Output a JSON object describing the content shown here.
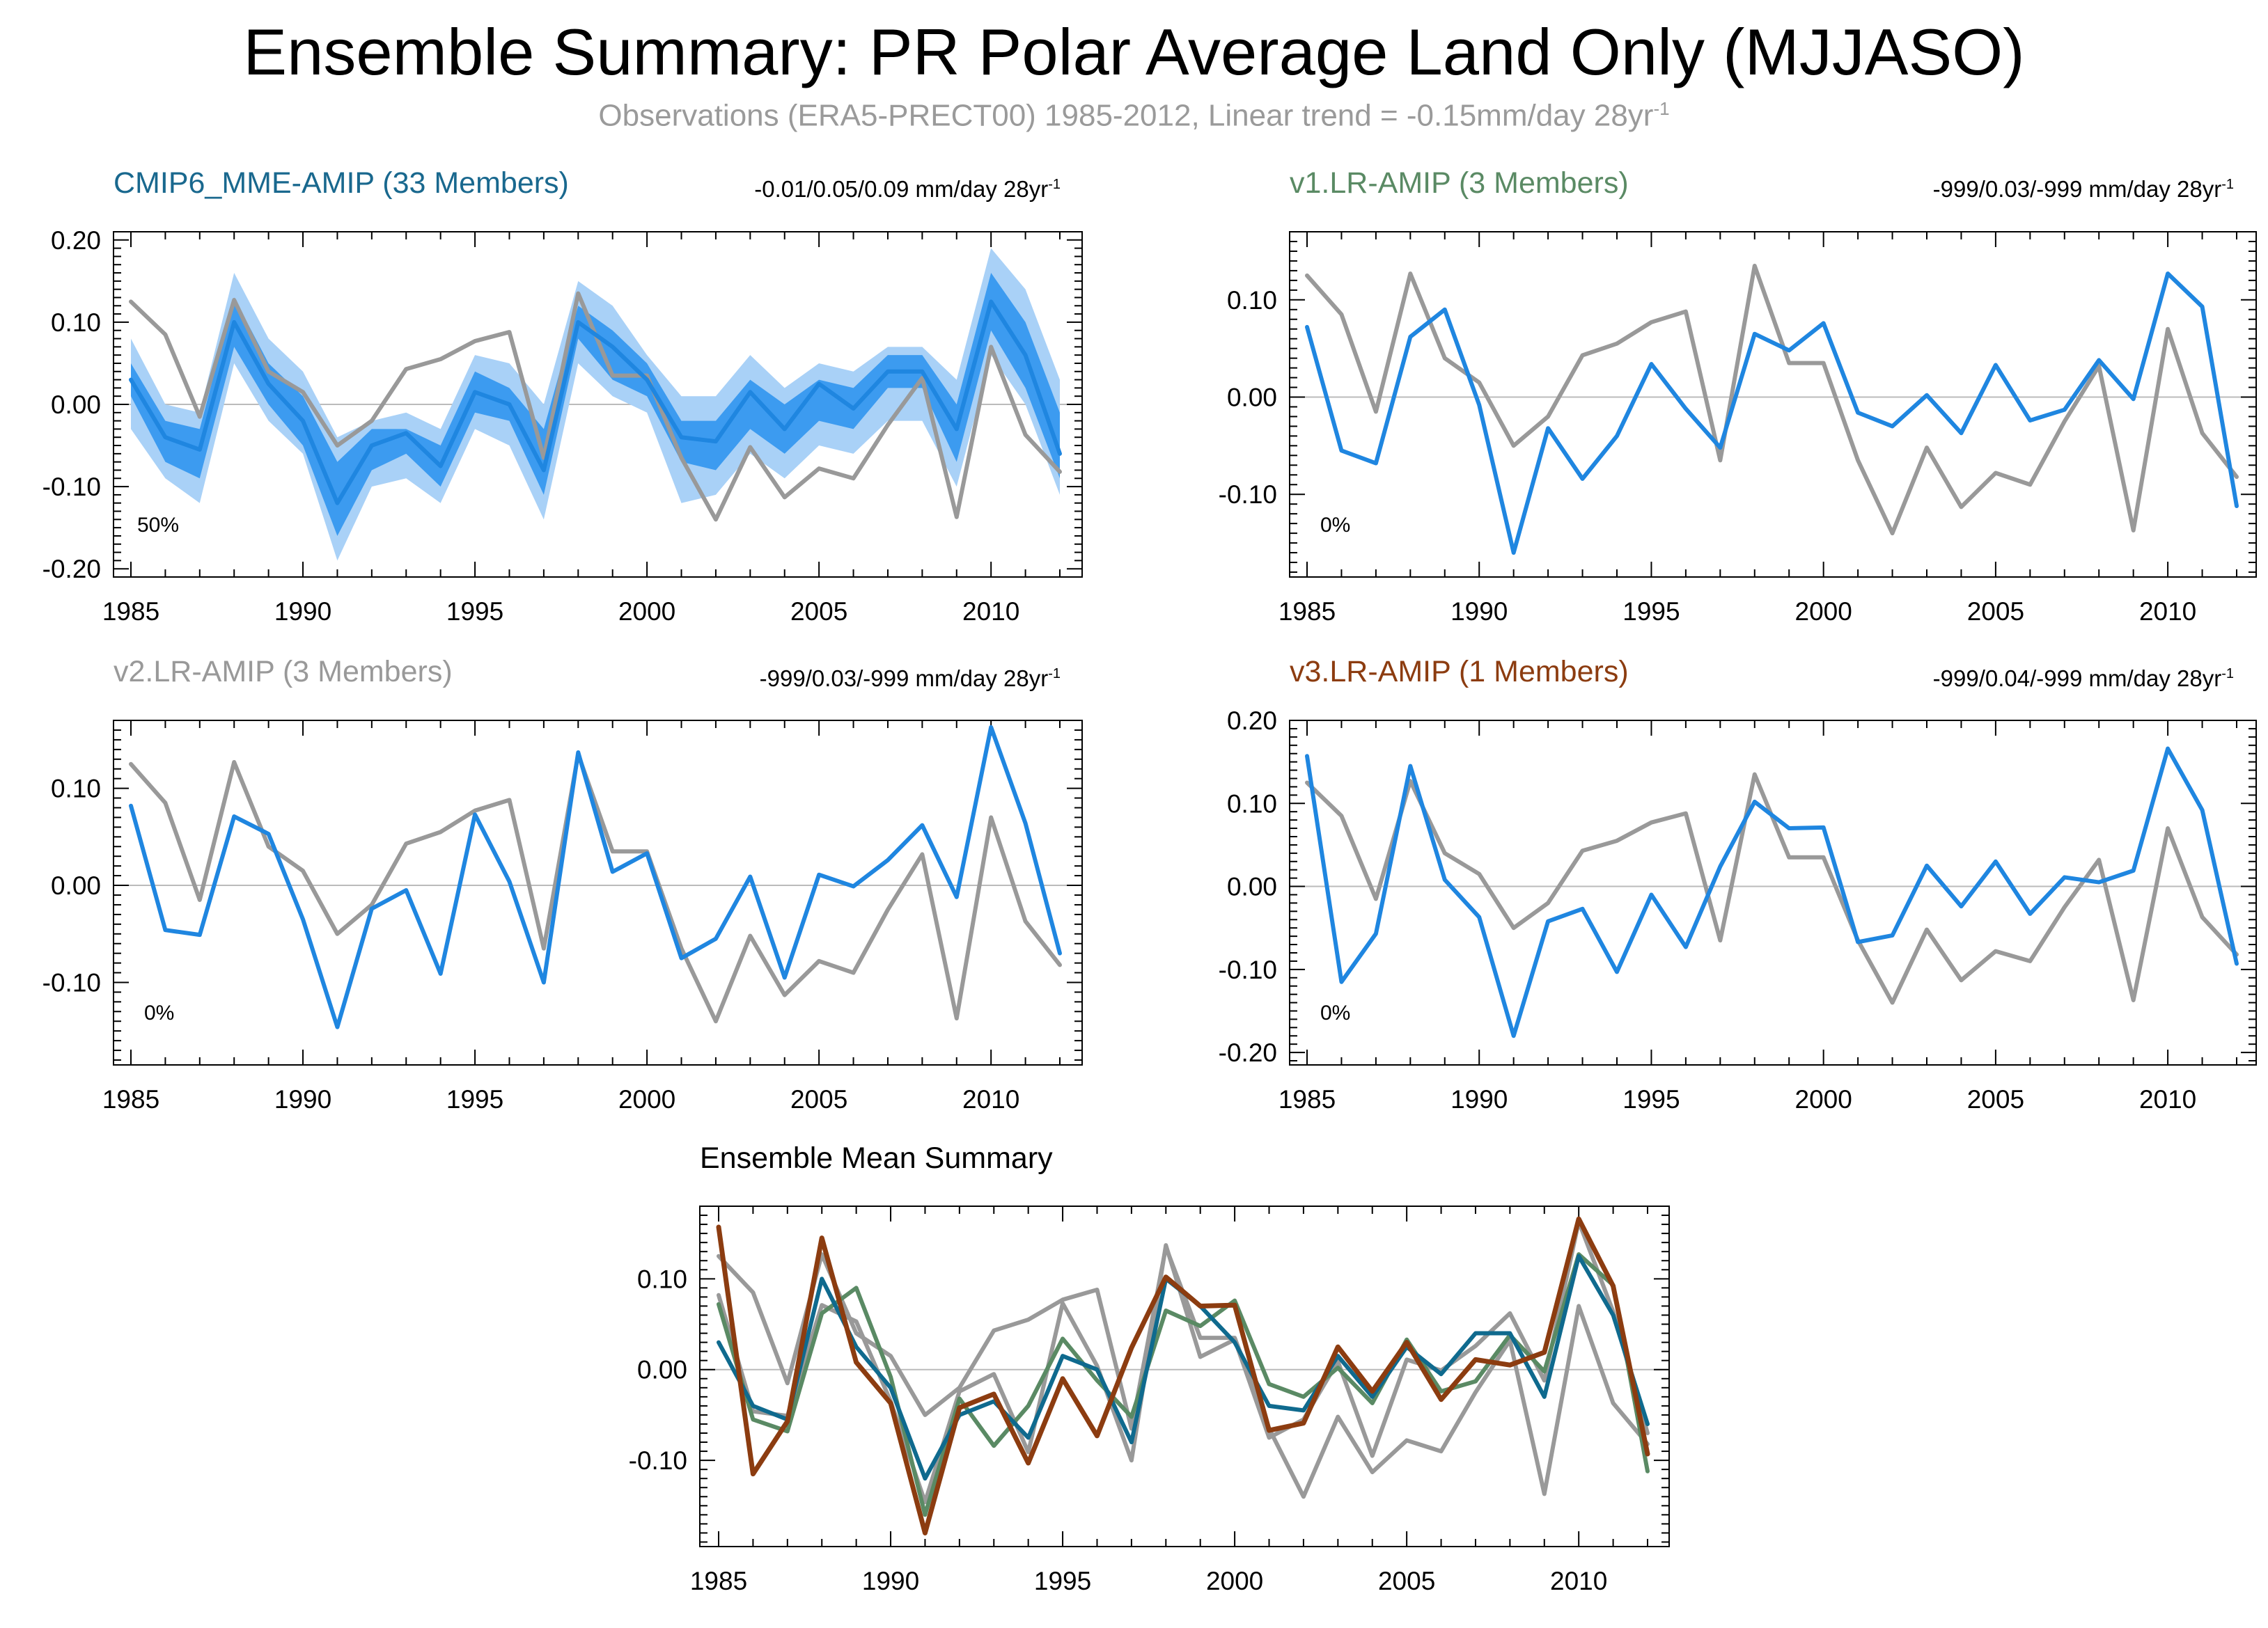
{
  "title": "Ensemble Summary: PR Polar Average Land Only (MJJASO)",
  "subtitle": {
    "text": "Observations (ERA5-PRECT00) 1985-2012, Linear trend = -0.15mm/day 28yr",
    "superscript": "-1"
  },
  "colors": {
    "observation": "#999999",
    "model_line": "#1f86e0",
    "band_outer": "#a9d1f7",
    "band_inner": "#3c9bf0",
    "cmip6_title": "#19688e",
    "v1_title": "#5a8a64",
    "v2_title": "#999999",
    "v3_title": "#8c3c10",
    "ens_cmip6": "#0f6a8e",
    "ens_v1": "#5a8a64",
    "ens_v2": "#999999",
    "ens_v3": "#8c3c10"
  },
  "chart_data": [
    {
      "id": "cmip6",
      "type": "line",
      "title": "CMIP6_MME-AMIP (33 Members)",
      "stats": "-0.01/0.05/0.09 mm/day 28yr",
      "stats_sup": "-1",
      "percent_label": "50%",
      "x": [
        1985,
        1986,
        1987,
        1988,
        1989,
        1990,
        1991,
        1992,
        1993,
        1994,
        1995,
        1996,
        1997,
        1998,
        1999,
        2000,
        2001,
        2002,
        2003,
        2004,
        2005,
        2006,
        2007,
        2008,
        2009,
        2010,
        2011,
        2012
      ],
      "xlim": [
        1985,
        2012
      ],
      "xticks": [
        "1985",
        "1990",
        "1995",
        "2000",
        "2005",
        "2010"
      ],
      "ylim": [
        -0.21,
        0.21
      ],
      "yticks": [
        "0.20",
        "0.10",
        "0.00",
        "-0.10",
        "-0.20"
      ],
      "ytick_values": [
        0.2,
        0.1,
        0.0,
        -0.1,
        -0.2
      ],
      "bands": [
        {
          "name": "outer",
          "upper": [
            0.08,
            0.0,
            -0.01,
            0.16,
            0.08,
            0.04,
            -0.04,
            -0.02,
            -0.01,
            -0.03,
            0.06,
            0.05,
            0.0,
            0.15,
            0.12,
            0.06,
            0.01,
            0.01,
            0.06,
            0.02,
            0.05,
            0.04,
            0.07,
            0.07,
            0.03,
            0.19,
            0.14,
            0.03
          ],
          "lower": [
            -0.03,
            -0.09,
            -0.12,
            0.05,
            -0.02,
            -0.06,
            -0.19,
            -0.1,
            -0.09,
            -0.12,
            -0.03,
            -0.05,
            -0.14,
            0.05,
            0.01,
            -0.01,
            -0.12,
            -0.11,
            -0.06,
            -0.09,
            -0.05,
            -0.06,
            -0.02,
            -0.02,
            -0.1,
            0.06,
            0.0,
            -0.11
          ]
        },
        {
          "name": "inner",
          "upper": [
            0.05,
            -0.02,
            -0.03,
            0.13,
            0.05,
            0.01,
            -0.07,
            -0.03,
            -0.03,
            -0.05,
            0.04,
            0.02,
            -0.03,
            0.12,
            0.09,
            0.05,
            -0.02,
            -0.02,
            0.03,
            0.0,
            0.03,
            0.02,
            0.06,
            0.06,
            0.0,
            0.16,
            0.1,
            -0.01
          ],
          "lower": [
            0.01,
            -0.07,
            -0.09,
            0.07,
            0.0,
            -0.05,
            -0.16,
            -0.08,
            -0.06,
            -0.1,
            -0.01,
            -0.02,
            -0.11,
            0.08,
            0.03,
            0.01,
            -0.07,
            -0.08,
            -0.03,
            -0.06,
            -0.02,
            -0.03,
            0.02,
            0.02,
            -0.07,
            0.09,
            0.02,
            -0.09
          ]
        }
      ],
      "series": [
        {
          "name": "Observations (ERA5-PRECT00)",
          "role": "obs",
          "values": [
            0.125,
            0.085,
            -0.015,
            0.127,
            0.04,
            0.015,
            -0.05,
            -0.02,
            0.043,
            0.055,
            0.077,
            0.088,
            -0.065,
            0.135,
            0.035,
            0.035,
            -0.065,
            -0.14,
            -0.052,
            -0.113,
            -0.078,
            -0.09,
            -0.025,
            0.032,
            -0.137,
            0.07,
            -0.037,
            -0.082
          ]
        },
        {
          "name": "CMIP6_MME-AMIP ensemble mean",
          "role": "model",
          "values": [
            0.03,
            -0.04,
            -0.055,
            0.1,
            0.025,
            -0.02,
            -0.12,
            -0.05,
            -0.035,
            -0.075,
            0.015,
            0.0,
            -0.08,
            0.1,
            0.07,
            0.03,
            -0.04,
            -0.045,
            0.015,
            -0.03,
            0.025,
            -0.005,
            0.04,
            0.04,
            -0.03,
            0.125,
            0.06,
            -0.06
          ]
        }
      ]
    },
    {
      "id": "v1",
      "type": "line",
      "title": "v1.LR-AMIP (3 Members)",
      "stats": "-999/0.03/-999 mm/day 28yr",
      "stats_sup": "-1",
      "percent_label": "0%",
      "x": [
        1985,
        1986,
        1987,
        1988,
        1989,
        1990,
        1991,
        1992,
        1993,
        1994,
        1995,
        1996,
        1997,
        1998,
        1999,
        2000,
        2001,
        2002,
        2003,
        2004,
        2005,
        2006,
        2007,
        2008,
        2009,
        2010,
        2011,
        2012
      ],
      "xlim": [
        1985,
        2012
      ],
      "xticks": [
        "1985",
        "1990",
        "1995",
        "2000",
        "2005",
        "2010"
      ],
      "ylim": [
        -0.185,
        0.17
      ],
      "yticks": [
        "0.10",
        "0.00",
        "-0.10"
      ],
      "ytick_values": [
        0.1,
        0.0,
        -0.1
      ],
      "series": [
        {
          "name": "Observations (ERA5-PRECT00)",
          "role": "obs",
          "values": [
            0.125,
            0.085,
            -0.015,
            0.127,
            0.04,
            0.015,
            -0.05,
            -0.02,
            0.043,
            0.055,
            0.077,
            0.088,
            -0.065,
            0.135,
            0.035,
            0.035,
            -0.065,
            -0.14,
            -0.052,
            -0.113,
            -0.078,
            -0.09,
            -0.025,
            0.032,
            -0.137,
            0.07,
            -0.037,
            -0.082
          ]
        },
        {
          "name": "v1.LR-AMIP",
          "role": "model",
          "values": [
            0.072,
            -0.055,
            -0.068,
            0.062,
            0.09,
            -0.008,
            -0.16,
            -0.032,
            -0.084,
            -0.04,
            0.034,
            -0.012,
            -0.052,
            0.065,
            0.048,
            0.076,
            -0.016,
            -0.03,
            0.002,
            -0.037,
            0.033,
            -0.024,
            -0.013,
            0.038,
            -0.002,
            0.127,
            0.093,
            -0.112
          ]
        }
      ]
    },
    {
      "id": "v2",
      "type": "line",
      "title": "v2.LR-AMIP (3 Members)",
      "stats": "-999/0.03/-999 mm/day 28yr",
      "stats_sup": "-1",
      "percent_label": "0%",
      "x": [
        1985,
        1986,
        1987,
        1988,
        1989,
        1990,
        1991,
        1992,
        1993,
        1994,
        1995,
        1996,
        1997,
        1998,
        1999,
        2000,
        2001,
        2002,
        2003,
        2004,
        2005,
        2006,
        2007,
        2008,
        2009,
        2010,
        2011,
        2012
      ],
      "xlim": [
        1985,
        2012
      ],
      "xticks": [
        "1985",
        "1990",
        "1995",
        "2000",
        "2005",
        "2010"
      ],
      "ylim": [
        -0.185,
        0.17
      ],
      "yticks": [
        "0.10",
        "0.00",
        "-0.10"
      ],
      "ytick_values": [
        0.1,
        0.0,
        -0.1
      ],
      "series": [
        {
          "name": "Observations (ERA5-PRECT00)",
          "role": "obs",
          "values": [
            0.125,
            0.085,
            -0.015,
            0.127,
            0.04,
            0.015,
            -0.05,
            -0.02,
            0.043,
            0.055,
            0.077,
            0.088,
            -0.065,
            0.135,
            0.035,
            0.035,
            -0.065,
            -0.14,
            -0.052,
            -0.113,
            -0.078,
            -0.09,
            -0.025,
            0.032,
            -0.137,
            0.07,
            -0.037,
            -0.082
          ]
        },
        {
          "name": "v2.LR-AMIP",
          "role": "model",
          "values": [
            0.082,
            -0.046,
            -0.051,
            0.071,
            0.053,
            -0.035,
            -0.146,
            -0.024,
            -0.005,
            -0.091,
            0.073,
            0.004,
            -0.1,
            0.137,
            0.014,
            0.033,
            -0.075,
            -0.055,
            0.009,
            -0.095,
            0.011,
            -0.001,
            0.026,
            0.062,
            -0.012,
            0.163,
            0.064,
            -0.07
          ]
        }
      ]
    },
    {
      "id": "v3",
      "type": "line",
      "title": "v3.LR-AMIP (1 Members)",
      "stats": "-999/0.04/-999 mm/day 28yr",
      "stats_sup": "-1",
      "percent_label": "0%",
      "x": [
        1985,
        1986,
        1987,
        1988,
        1989,
        1990,
        1991,
        1992,
        1993,
        1994,
        1995,
        1996,
        1997,
        1998,
        1999,
        2000,
        2001,
        2002,
        2003,
        2004,
        2005,
        2006,
        2007,
        2008,
        2009,
        2010,
        2011,
        2012
      ],
      "xlim": [
        1985,
        2012
      ],
      "xticks": [
        "1985",
        "1990",
        "1995",
        "2000",
        "2005",
        "2010"
      ],
      "ylim": [
        -0.215,
        0.2
      ],
      "yticks": [
        "0.20",
        "0.10",
        "0.00",
        "-0.10",
        "-0.20"
      ],
      "ytick_values": [
        0.2,
        0.1,
        0.0,
        -0.1,
        -0.2
      ],
      "series": [
        {
          "name": "Observations (ERA5-PRECT00)",
          "role": "obs",
          "values": [
            0.125,
            0.085,
            -0.015,
            0.127,
            0.04,
            0.015,
            -0.05,
            -0.02,
            0.043,
            0.055,
            0.077,
            0.088,
            -0.065,
            0.135,
            0.035,
            0.035,
            -0.065,
            -0.14,
            -0.052,
            -0.113,
            -0.078,
            -0.09,
            -0.025,
            0.032,
            -0.137,
            0.07,
            -0.037,
            -0.082
          ]
        },
        {
          "name": "v3.LR-AMIP",
          "role": "model",
          "values": [
            0.157,
            -0.115,
            -0.057,
            0.145,
            0.008,
            -0.037,
            -0.18,
            -0.042,
            -0.027,
            -0.103,
            -0.01,
            -0.073,
            0.024,
            0.102,
            0.07,
            0.071,
            -0.067,
            -0.059,
            0.025,
            -0.024,
            0.03,
            -0.033,
            0.011,
            0.005,
            0.019,
            0.166,
            0.092,
            -0.093
          ]
        }
      ]
    },
    {
      "id": "ensemble",
      "type": "line",
      "title": "Ensemble Mean Summary",
      "x": [
        1985,
        1986,
        1987,
        1988,
        1989,
        1990,
        1991,
        1992,
        1993,
        1994,
        1995,
        1996,
        1997,
        1998,
        1999,
        2000,
        2001,
        2002,
        2003,
        2004,
        2005,
        2006,
        2007,
        2008,
        2009,
        2010,
        2011,
        2012
      ],
      "xlim": [
        1985,
        2012
      ],
      "xticks": [
        "1985",
        "1990",
        "1995",
        "2000",
        "2005",
        "2010"
      ],
      "ylim": [
        -0.195,
        0.18
      ],
      "yticks": [
        "0.10",
        "0.00",
        "-0.10"
      ],
      "ytick_values": [
        0.1,
        0.0,
        -0.1
      ],
      "series": [
        {
          "name": "Observations (ERA5-PRECT00)",
          "role": "ens_obs",
          "values": [
            0.125,
            0.085,
            -0.015,
            0.127,
            0.04,
            0.015,
            -0.05,
            -0.02,
            0.043,
            0.055,
            0.077,
            0.088,
            -0.065,
            0.135,
            0.035,
            0.035,
            -0.065,
            -0.14,
            -0.052,
            -0.113,
            -0.078,
            -0.09,
            -0.025,
            0.032,
            -0.137,
            0.07,
            -0.037,
            -0.082
          ]
        },
        {
          "name": "v2.LR-AMIP",
          "role": "ens_v2",
          "values": [
            0.082,
            -0.046,
            -0.051,
            0.071,
            0.053,
            -0.035,
            -0.146,
            -0.024,
            -0.005,
            -0.091,
            0.073,
            0.004,
            -0.1,
            0.137,
            0.014,
            0.033,
            -0.075,
            -0.055,
            0.009,
            -0.095,
            0.011,
            -0.001,
            0.026,
            0.062,
            -0.012,
            0.163,
            0.064,
            -0.07
          ]
        },
        {
          "name": "v1.LR-AMIP",
          "role": "ens_v1",
          "values": [
            0.072,
            -0.055,
            -0.068,
            0.062,
            0.09,
            -0.008,
            -0.16,
            -0.032,
            -0.084,
            -0.04,
            0.034,
            -0.012,
            -0.052,
            0.065,
            0.048,
            0.076,
            -0.016,
            -0.03,
            0.002,
            -0.037,
            0.033,
            -0.024,
            -0.013,
            0.038,
            -0.002,
            0.127,
            0.093,
            -0.112
          ]
        },
        {
          "name": "CMIP6_MME-AMIP",
          "role": "ens_cmip6",
          "values": [
            0.03,
            -0.04,
            -0.055,
            0.1,
            0.025,
            -0.02,
            -0.12,
            -0.05,
            -0.035,
            -0.075,
            0.015,
            0.0,
            -0.08,
            0.1,
            0.07,
            0.03,
            -0.04,
            -0.045,
            0.015,
            -0.03,
            0.025,
            -0.005,
            0.04,
            0.04,
            -0.03,
            0.125,
            0.06,
            -0.06
          ]
        },
        {
          "name": "v3.LR-AMIP",
          "role": "ens_v3",
          "values": [
            0.157,
            -0.115,
            -0.057,
            0.145,
            0.008,
            -0.037,
            -0.18,
            -0.042,
            -0.027,
            -0.103,
            -0.01,
            -0.073,
            0.024,
            0.102,
            0.07,
            0.071,
            -0.067,
            -0.059,
            0.025,
            -0.024,
            0.03,
            -0.033,
            0.011,
            0.005,
            0.019,
            0.166,
            0.092,
            -0.093
          ]
        }
      ]
    }
  ]
}
